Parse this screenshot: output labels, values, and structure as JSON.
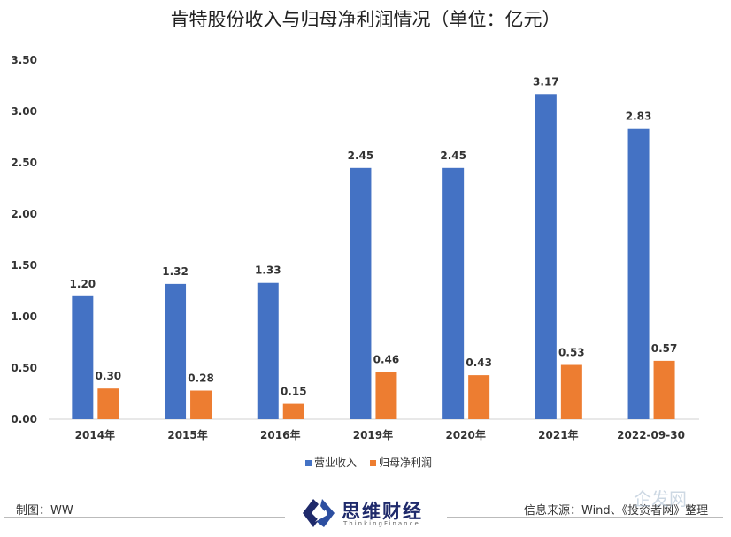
{
  "chart_data": {
    "type": "bar",
    "title": "肯特股份收入与归母净利润情况（单位：亿元）",
    "categories": [
      "2014年",
      "2015年",
      "2016年",
      "2019年",
      "2020年",
      "2021年",
      "2022-09-30"
    ],
    "series": [
      {
        "name": "营业收入",
        "color": "#4472C4",
        "values": [
          1.2,
          1.32,
          1.33,
          2.45,
          2.45,
          3.17,
          2.83
        ]
      },
      {
        "name": "归母净利润",
        "color": "#ED7D31",
        "values": [
          0.3,
          0.28,
          0.15,
          0.46,
          0.43,
          0.53,
          0.57
        ]
      }
    ],
    "ylim": [
      0,
      3.5
    ],
    "yticks": [
      "0.00",
      "0.50",
      "1.00",
      "1.50",
      "2.00",
      "2.50",
      "3.00",
      "3.50"
    ],
    "grid": false,
    "legend": "bottom"
  },
  "footer": {
    "maker": "制图：WW",
    "source": "信息来源：Wind、《投资者网》整理",
    "logo_cn": "思维财经",
    "logo_en": "ThinkingFinance",
    "watermark": "企发网"
  }
}
